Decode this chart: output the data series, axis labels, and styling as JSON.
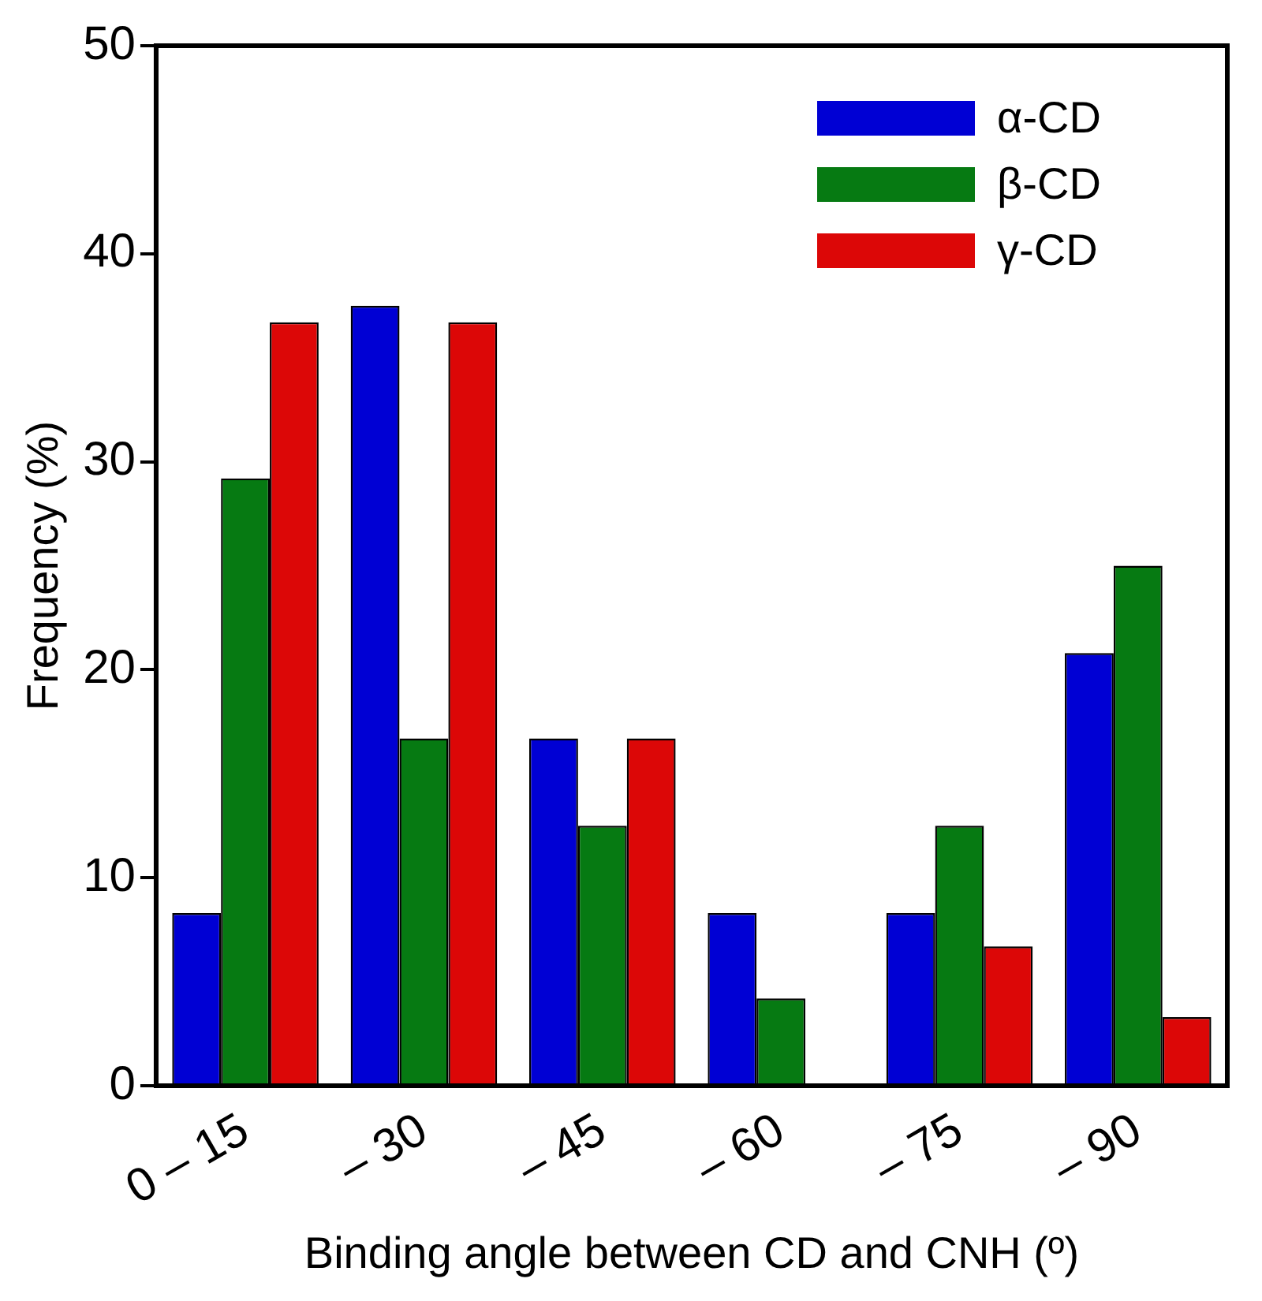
{
  "chart_data": {
    "type": "bar",
    "xlabel": "Binding angle between CD and CNH (º)",
    "ylabel": "Frequency (%)",
    "categories": [
      "0 – 15",
      "– 30",
      "– 45",
      "– 60",
      "– 75",
      "– 90"
    ],
    "series": [
      {
        "name": "α-CD",
        "color": "#0000d4",
        "values": [
          8.3,
          37.5,
          16.7,
          8.3,
          8.3,
          20.8
        ]
      },
      {
        "name": "β-CD",
        "color": "#067a12",
        "values": [
          29.2,
          16.7,
          12.5,
          4.2,
          12.5,
          25.0
        ]
      },
      {
        "name": "γ-CD",
        "color": "#dc0707",
        "values": [
          36.7,
          36.7,
          16.7,
          0,
          6.7,
          3.3
        ]
      }
    ],
    "ylim": [
      0,
      50
    ],
    "yticks": [
      0,
      10,
      20,
      30,
      40,
      50
    ],
    "grid": false,
    "legend": "top right"
  }
}
